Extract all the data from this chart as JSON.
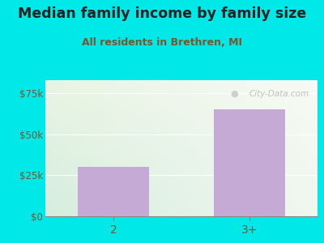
{
  "title": "Median family income by family size",
  "subtitle": "All residents in Brethren, MI",
  "categories": [
    "2",
    "3+"
  ],
  "values": [
    30000,
    65000
  ],
  "bar_color": "#c4aad4",
  "background_color": "#00e8e8",
  "ylim": [
    0,
    83000
  ],
  "yticks": [
    0,
    25000,
    50000,
    75000
  ],
  "ytick_labels": [
    "$0",
    "$25k",
    "$50k",
    "$75k"
  ],
  "title_fontsize": 12.5,
  "subtitle_fontsize": 9,
  "title_color": "#222222",
  "subtitle_color": "#7a5530",
  "tick_color": "#7a5530",
  "watermark_text": "City-Data.com",
  "grid_color": "#cccccc"
}
